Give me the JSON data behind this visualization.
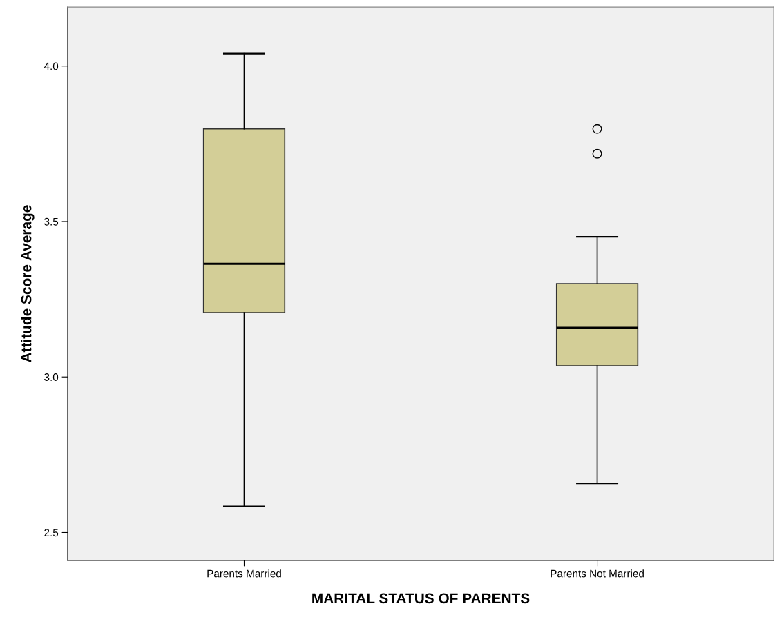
{
  "chart_data": {
    "type": "box",
    "xlabel": "MARITAL STATUS OF PARENTS",
    "ylabel": "Attitude Score Average",
    "categories": [
      "Parents Married",
      "Parents Not Married"
    ],
    "boxes": [
      {
        "low": 2.584,
        "q1": 3.207,
        "median": 3.364,
        "q3": 3.798,
        "high": 4.04
      },
      {
        "low": 2.656,
        "q1": 3.036,
        "median": 3.158,
        "q3": 3.3,
        "high": 3.451,
        "outliers": [
          3.798,
          3.718
        ]
      }
    ],
    "color": "#d3ce97",
    "ylim": [
      2.41,
      4.19
    ],
    "yticks": [
      {
        "value": 2.5,
        "label": "2.5"
      },
      {
        "value": 3.0,
        "label": "3.0"
      },
      {
        "value": 3.5,
        "label": "3.5"
      },
      {
        "value": 4.0,
        "label": "4.0"
      }
    ],
    "grid": false
  }
}
